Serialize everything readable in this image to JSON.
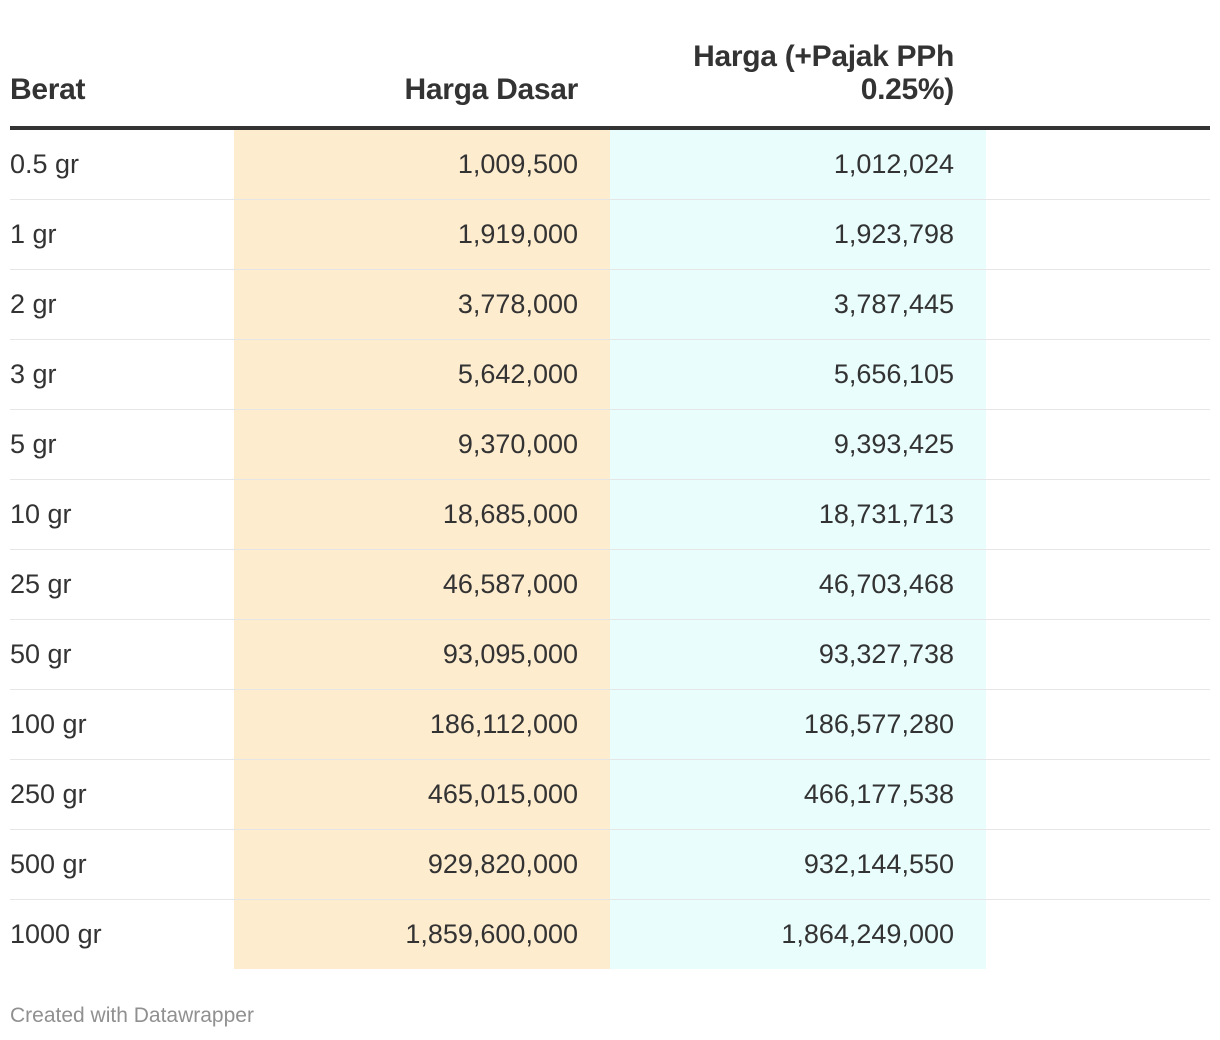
{
  "chart_data": {
    "type": "table",
    "columns": [
      "Berat",
      "Harga Dasar",
      "Harga (+Pajak PPh 0.25%)"
    ],
    "rows": [
      [
        "0.5 gr",
        "1,009,500",
        "1,012,024"
      ],
      [
        "1 gr",
        "1,919,000",
        "1,923,798"
      ],
      [
        "2 gr",
        "3,778,000",
        "3,787,445"
      ],
      [
        "3 gr",
        "5,642,000",
        "5,656,105"
      ],
      [
        "5 gr",
        "9,370,000",
        "9,393,425"
      ],
      [
        "10 gr",
        "18,685,000",
        "18,731,713"
      ],
      [
        "25 gr",
        "46,587,000",
        "46,703,468"
      ],
      [
        "50 gr",
        "93,095,000",
        "93,327,738"
      ],
      [
        "100 gr",
        "186,112,000",
        "186,577,280"
      ],
      [
        "250 gr",
        "465,015,000",
        "466,177,538"
      ],
      [
        "500 gr",
        "929,820,000",
        "932,144,550"
      ],
      [
        "1000 gr",
        "1,859,600,000",
        "1,864,249,000"
      ]
    ],
    "column_colors": {
      "Harga Dasar": "#feeccf",
      "Harga (+Pajak PPh 0.25%)": "#e8fdfc"
    }
  },
  "footer": {
    "credit": "Created with Datawrapper"
  }
}
